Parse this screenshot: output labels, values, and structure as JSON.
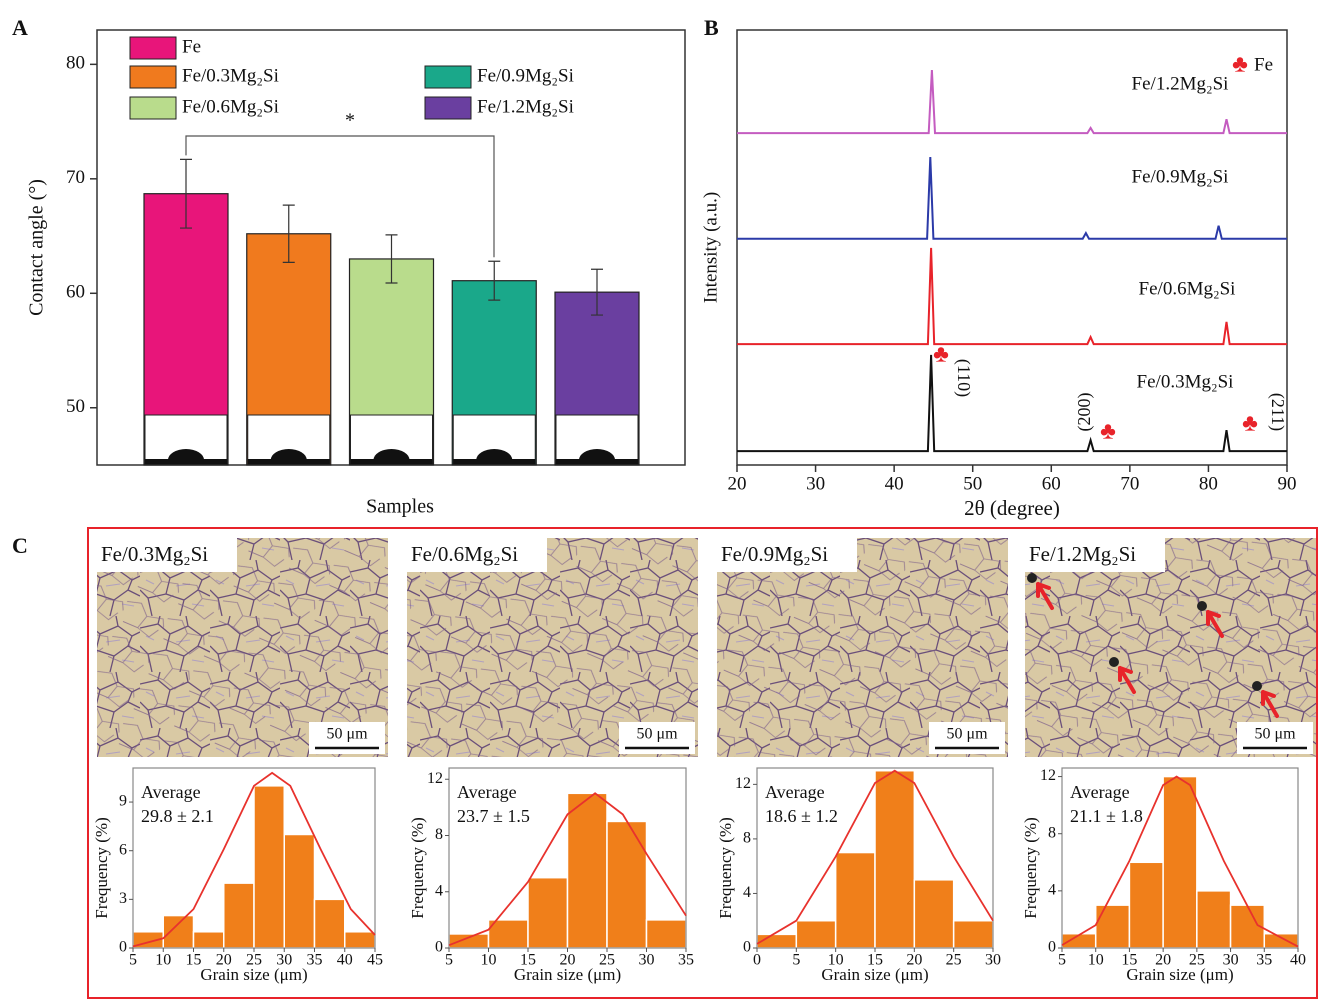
{
  "panel_labels": [
    "A",
    "B",
    "C"
  ],
  "chart_data": [
    {
      "type": "bar",
      "xlabel": "Samples",
      "ylabel": "Contact angle (°)",
      "categories": [
        "Fe",
        "Fe/0.3Mg₂Si",
        "Fe/0.6Mg₂Si",
        "Fe/0.9Mg₂Si",
        "Fe/1.2Mg₂Si"
      ],
      "colors": [
        "#e8157a",
        "#f07a1e",
        "#b9dc8c",
        "#1aa88a",
        "#6a3fa0"
      ],
      "values": [
        68.7,
        65.2,
        63.0,
        61.1,
        60.1
      ],
      "errors": [
        3.0,
        2.5,
        2.1,
        1.7,
        2.0
      ],
      "significance_label": "*",
      "ylim": [
        45,
        83
      ],
      "yticks": [
        50,
        60,
        70,
        80
      ]
    },
    {
      "type": "line",
      "xlabel": "2θ (degree)",
      "ylabel": "Intensity (a.u.)",
      "xlim": [
        20,
        90
      ],
      "xticks": [
        20,
        30,
        40,
        50,
        60,
        70,
        80,
        90
      ],
      "ylim": [
        0,
        100
      ],
      "marker_symbol": "♣",
      "legend_label": "Fe",
      "peak_labels": [
        "(110)",
        "(200)",
        "(211)"
      ],
      "series": [
        {
          "name": "Fe/0.3Mg₂Si",
          "color": "#111111",
          "x": [
            20,
            44.3,
            44.7,
            45.1,
            64.6,
            65,
            65.4,
            81.9,
            82.3,
            82.7,
            90
          ],
          "values": [
            3.2,
            3.2,
            25.3,
            3.2,
            3.2,
            5.7,
            3.2,
            3.2,
            8,
            3.2,
            3.2
          ]
        },
        {
          "name": "Fe/0.6Mg₂Si",
          "color": "#e8232a",
          "x": [
            20,
            44.3,
            44.7,
            45.1,
            64.6,
            65,
            65.4,
            81.9,
            82.3,
            82.7,
            90
          ],
          "values": [
            27.8,
            27.8,
            49.9,
            27.8,
            27.8,
            29.4,
            27.8,
            27.8,
            32.9,
            27.8,
            27.8
          ]
        },
        {
          "name": "Fe/0.9Mg₂Si",
          "color": "#2b3aa8",
          "x": [
            20,
            44.2,
            44.6,
            45,
            64,
            64.4,
            64.8,
            80.9,
            81.3,
            81.7,
            90
          ],
          "values": [
            52,
            52,
            70.8,
            52,
            52,
            53.3,
            52,
            52,
            55,
            52,
            52
          ]
        },
        {
          "name": "Fe/1.2Mg₂Si",
          "color": "#c45cc0",
          "x": [
            20,
            44.4,
            44.8,
            45.2,
            64.6,
            65,
            65.4,
            81.9,
            82.3,
            82.7,
            90
          ],
          "values": [
            76.3,
            76.3,
            90.8,
            76.3,
            76.3,
            77.5,
            76.3,
            76.3,
            79.5,
            76.3,
            76.3
          ]
        }
      ]
    },
    {
      "type": "histogram",
      "xlabel": "Grain size (μm)",
      "ylabel": "Frequency (%)",
      "annotation": [
        "Average",
        "29.8 ± 2.1"
      ],
      "color": "#f07f1a",
      "bins": [
        5,
        10,
        15,
        20,
        25,
        30,
        35,
        40,
        45
      ],
      "counts": [
        1,
        2,
        1,
        4,
        10,
        7,
        3,
        1
      ],
      "xlim": [
        5,
        45
      ],
      "xticks": [
        5,
        10,
        15,
        20,
        25,
        30,
        35,
        40,
        45
      ],
      "ylim": [
        0,
        11.1
      ],
      "yticks": [
        0,
        3,
        6,
        9
      ],
      "fit": {
        "color": "#e8322d",
        "x": [
          5,
          10,
          15,
          20,
          25,
          28,
          31,
          36,
          41,
          45
        ],
        "values": [
          0.1,
          0.6,
          2.4,
          6.1,
          10.0,
          10.8,
          10.0,
          6.1,
          2.4,
          0.8
        ]
      }
    },
    {
      "type": "histogram",
      "xlabel": "Grain size (μm)",
      "ylabel": "Frequency (%)",
      "annotation": [
        "Average",
        "23.7 ± 1.5"
      ],
      "color": "#f07f1a",
      "bins": [
        5,
        10,
        15,
        20,
        25,
        30,
        35
      ],
      "counts": [
        1,
        2,
        5,
        11,
        9,
        2
      ],
      "xlim": [
        5,
        35
      ],
      "xticks": [
        5,
        10,
        15,
        20,
        25,
        30,
        35
      ],
      "ylim": [
        0,
        12.8
      ],
      "yticks": [
        0,
        4,
        8,
        12
      ],
      "fit": {
        "color": "#e8322d",
        "x": [
          5,
          10,
          15,
          20,
          23.5,
          27,
          30,
          35
        ],
        "values": [
          0.2,
          1.3,
          4.7,
          9.5,
          11,
          9.5,
          6.7,
          2.3
        ]
      }
    },
    {
      "type": "histogram",
      "xlabel": "Grain size (μm)",
      "ylabel": "Frequency (%)",
      "annotation": [
        "Average",
        "18.6 ± 1.2"
      ],
      "color": "#f07f1a",
      "bins": [
        0,
        5,
        10,
        15,
        20,
        25,
        30
      ],
      "counts": [
        1,
        2,
        7,
        13,
        5,
        2
      ],
      "xlim": [
        0,
        30
      ],
      "xticks": [
        0,
        5,
        10,
        15,
        20,
        25,
        30
      ],
      "ylim": [
        0,
        13.2
      ],
      "yticks": [
        0,
        4,
        8,
        12
      ],
      "fit": {
        "color": "#e8322d",
        "x": [
          0,
          5,
          10,
          15,
          17.5,
          20,
          25,
          30
        ],
        "values": [
          0.3,
          2.0,
          6.7,
          12.1,
          13,
          12.1,
          6.7,
          2.0
        ]
      }
    },
    {
      "type": "histogram",
      "xlabel": "Grain size (μm)",
      "ylabel": "Frequency (%)",
      "annotation": [
        "Average",
        "21.1 ± 1.8"
      ],
      "color": "#f07f1a",
      "bins": [
        5,
        10,
        15,
        20,
        25,
        30,
        35,
        40
      ],
      "counts": [
        1,
        3,
        6,
        12,
        4,
        3,
        1
      ],
      "xlim": [
        5,
        40
      ],
      "xticks": [
        5,
        10,
        15,
        20,
        25,
        30,
        35,
        40
      ],
      "ylim": [
        0,
        12.6
      ],
      "yticks": [
        0,
        4,
        8,
        12
      ],
      "fit": {
        "color": "#e8322d",
        "x": [
          5,
          10,
          15,
          20,
          22,
          24,
          29,
          34,
          40
        ],
        "values": [
          0.2,
          1.6,
          6.1,
          11.4,
          12,
          11.4,
          6.1,
          1.6,
          0.1
        ]
      }
    }
  ],
  "micrographs": [
    {
      "label": "Fe/0.3Mg₂Si",
      "scale_bar": "50 μm"
    },
    {
      "label": "Fe/0.6Mg₂Si",
      "scale_bar": "50 μm"
    },
    {
      "label": "Fe/0.9Mg₂Si",
      "scale_bar": "50 μm"
    },
    {
      "label": "Fe/1.2Mg₂Si",
      "scale_bar": "50 μm"
    }
  ]
}
